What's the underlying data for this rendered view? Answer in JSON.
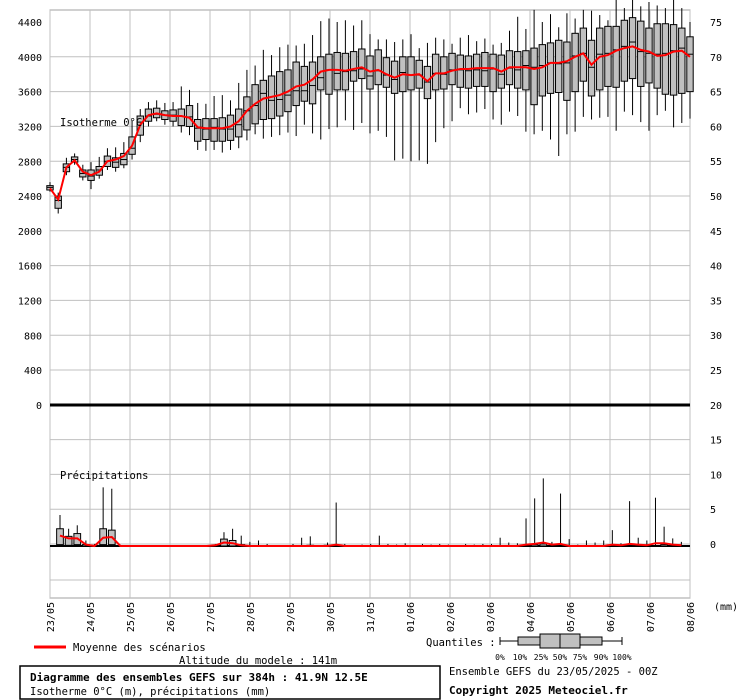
{
  "chart_data": {
    "type": "box",
    "title": "Diagramme des ensembles GEFS sur 384h : 41.9N 12.5E",
    "subtitle": "Isotherme 0°C (m), précipitations (mm)",
    "altitude_label": "Altitude du modele : 141m",
    "run_label": "Ensemble GEFS du 23/05/2025 - 00Z",
    "copyright": "Copyright 2025 Meteociel.fr",
    "legend_mean": "Moyenne des scénarios",
    "quantiles_label": "Quantiles :",
    "quantile_ticks": [
      "0%",
      "10%",
      "25%",
      "50%",
      "75%",
      "90%",
      "100%"
    ],
    "panel_iso_label": "Isotherme 0°C",
    "panel_precip_label": "Précipitations",
    "x_labels": [
      "23/05",
      "24/05",
      "25/05",
      "26/05",
      "27/05",
      "28/05",
      "29/05",
      "30/05",
      "31/05",
      "01/06",
      "02/06",
      "03/06",
      "04/06",
      "05/06",
      "06/06",
      "07/06",
      "08/06"
    ],
    "x_unit": "(mm)",
    "y_left_ticks": [
      "4400",
      "4000",
      "3600",
      "3200",
      "2800",
      "2400",
      "2000",
      "1600",
      "1200",
      "800",
      "400",
      "0"
    ],
    "y_right_ticks": [
      "75",
      "70",
      "65",
      "60",
      "55",
      "50",
      "45",
      "40",
      "35",
      "30",
      "25",
      "20",
      "15",
      "10",
      "5",
      "0"
    ],
    "isotherm": [
      [
        2450,
        2470,
        2500,
        2520,
        2560
      ],
      [
        2200,
        2260,
        2350,
        2400,
        2440
      ],
      [
        2640,
        2680,
        2730,
        2770,
        2840
      ],
      [
        2760,
        2790,
        2820,
        2850,
        2890
      ],
      [
        2580,
        2620,
        2660,
        2700,
        2760
      ],
      [
        2480,
        2580,
        2630,
        2700,
        2790
      ],
      [
        2600,
        2640,
        2700,
        2740,
        2850
      ],
      [
        2700,
        2740,
        2800,
        2860,
        2950
      ],
      [
        2680,
        2730,
        2790,
        2840,
        2960
      ],
      [
        2720,
        2760,
        2820,
        2890,
        3020
      ],
      [
        2820,
        2880,
        2950,
        3080,
        3270
      ],
      [
        3020,
        3100,
        3250,
        3320,
        3400
      ],
      [
        3200,
        3260,
        3320,
        3400,
        3480
      ],
      [
        3260,
        3300,
        3340,
        3410,
        3500
      ],
      [
        3220,
        3280,
        3330,
        3380,
        3470
      ],
      [
        3200,
        3260,
        3330,
        3390,
        3480
      ],
      [
        3130,
        3210,
        3320,
        3400,
        3660
      ],
      [
        3100,
        3200,
        3310,
        3440,
        3620
      ],
      [
        2930,
        3030,
        3180,
        3280,
        3470
      ],
      [
        2920,
        3050,
        3170,
        3290,
        3460
      ],
      [
        2930,
        3030,
        3190,
        3290,
        3550
      ],
      [
        2900,
        3030,
        3170,
        3300,
        3560
      ],
      [
        2930,
        3040,
        3170,
        3330,
        3500
      ],
      [
        2950,
        3080,
        3220,
        3400,
        3700
      ],
      [
        3040,
        3160,
        3380,
        3540,
        3850
      ],
      [
        3110,
        3230,
        3440,
        3680,
        3900
      ],
      [
        3060,
        3280,
        3580,
        3730,
        4080
      ],
      [
        3080,
        3290,
        3500,
        3780,
        4020
      ],
      [
        3100,
        3320,
        3510,
        3830,
        4110
      ],
      [
        3130,
        3370,
        3560,
        3850,
        4140
      ],
      [
        3090,
        3440,
        3610,
        3940,
        4130
      ],
      [
        3220,
        3490,
        3610,
        3890,
        4150
      ],
      [
        3120,
        3460,
        3670,
        3940,
        4250
      ],
      [
        3050,
        3620,
        3760,
        4000,
        4410
      ],
      [
        3170,
        3570,
        3850,
        4030,
        4440
      ],
      [
        3190,
        3620,
        3810,
        4050,
        4400
      ],
      [
        3270,
        3620,
        3830,
        4040,
        4420
      ],
      [
        3160,
        3720,
        3840,
        4060,
        4360
      ],
      [
        3240,
        3750,
        3860,
        4090,
        4420
      ],
      [
        3120,
        3630,
        3780,
        4010,
        4260
      ],
      [
        3150,
        3680,
        3840,
        4080,
        4200
      ],
      [
        3080,
        3650,
        3790,
        3990,
        4200
      ],
      [
        2810,
        3580,
        3740,
        3950,
        4170
      ],
      [
        2830,
        3600,
        3820,
        4000,
        4200
      ],
      [
        2800,
        3620,
        3790,
        4000,
        4260
      ],
      [
        2810,
        3640,
        3790,
        3960,
        4100
      ],
      [
        2770,
        3520,
        3710,
        3890,
        4160
      ],
      [
        3020,
        3620,
        3810,
        4030,
        4220
      ],
      [
        3180,
        3630,
        3800,
        4000,
        4200
      ],
      [
        3260,
        3680,
        3850,
        4040,
        4150
      ],
      [
        3410,
        3650,
        3850,
        4020,
        4220
      ],
      [
        3340,
        3640,
        3840,
        4010,
        4250
      ],
      [
        3360,
        3660,
        3850,
        4030,
        4180
      ],
      [
        3400,
        3660,
        3840,
        4050,
        4210
      ],
      [
        3280,
        3600,
        3860,
        4030,
        4140
      ],
      [
        3220,
        3640,
        3800,
        4020,
        4160
      ],
      [
        3370,
        3680,
        3870,
        4070,
        4300
      ],
      [
        3320,
        3640,
        3850,
        4060,
        4460
      ],
      [
        3140,
        3620,
        3900,
        4070,
        4320
      ],
      [
        3110,
        3450,
        3880,
        4100,
        4540
      ],
      [
        3150,
        3550,
        3900,
        4140,
        4400
      ],
      [
        3050,
        3580,
        3930,
        4160,
        4490
      ],
      [
        2860,
        3590,
        3920,
        4190,
        4340
      ],
      [
        3110,
        3500,
        3930,
        4170,
        4500
      ],
      [
        3140,
        3600,
        4010,
        4270,
        4440
      ],
      [
        3310,
        3720,
        4040,
        4330,
        4540
      ],
      [
        3280,
        3550,
        3880,
        4190,
        4530
      ],
      [
        3300,
        3620,
        4030,
        4330,
        4480
      ],
      [
        3310,
        3660,
        4040,
        4350,
        4420
      ],
      [
        3150,
        3650,
        4080,
        4350,
        4680
      ],
      [
        3370,
        3720,
        4120,
        4420,
        4560
      ],
      [
        3330,
        3750,
        4170,
        4450,
        4660
      ],
      [
        3250,
        3660,
        4060,
        4410,
        4580
      ],
      [
        3150,
        3700,
        4040,
        4330,
        4630
      ],
      [
        3330,
        3640,
        4030,
        4380,
        4590
      ],
      [
        3380,
        3570,
        4040,
        4380,
        4560
      ],
      [
        3190,
        3560,
        4070,
        4370,
        4720
      ],
      [
        3240,
        3580,
        4100,
        4330,
        4560
      ],
      [
        3290,
        3600,
        4030,
        4230,
        4400
      ]
    ],
    "isotherm_mean": [
      2490,
      2360,
      2730,
      2810,
      2680,
      2640,
      2680,
      2800,
      2820,
      2860,
      2980,
      3220,
      3330,
      3350,
      3330,
      3320,
      3320,
      3300,
      3190,
      3180,
      3180,
      3180,
      3200,
      3260,
      3380,
      3460,
      3520,
      3540,
      3560,
      3600,
      3660,
      3680,
      3740,
      3830,
      3850,
      3850,
      3840,
      3860,
      3880,
      3830,
      3850,
      3800,
      3760,
      3800,
      3790,
      3800,
      3720,
      3810,
      3810,
      3840,
      3860,
      3860,
      3870,
      3870,
      3870,
      3830,
      3880,
      3880,
      3880,
      3860,
      3880,
      3930,
      3930,
      3950,
      4000,
      4040,
      3910,
      4000,
      4020,
      4070,
      4100,
      4120,
      4080,
      4060,
      4010,
      4020,
      4060,
      4070,
      4000
    ],
    "precip": [
      [
        0,
        0.2,
        1,
        2.5,
        4.5
      ],
      [
        0,
        0.1,
        0.6,
        1.4,
        2.5
      ],
      [
        0,
        0.2,
        0.8,
        1.8,
        3
      ],
      [
        0,
        0,
        0.1,
        0.2,
        0.8
      ],
      [
        0,
        0,
        0,
        0.1,
        0.3
      ],
      [
        0,
        0.2,
        0.8,
        2.5,
        8.5
      ],
      [
        0,
        0.2,
        1,
        2.3,
        8.3
      ],
      [
        0,
        0,
        0,
        0,
        0
      ],
      [
        0,
        0,
        0,
        0,
        0
      ],
      [
        0,
        0,
        0,
        0,
        0
      ],
      [
        0,
        0,
        0,
        0,
        0
      ],
      [
        0,
        0,
        0,
        0,
        0
      ],
      [
        0,
        0,
        0,
        0,
        0
      ],
      [
        0,
        0,
        0,
        0,
        0
      ],
      [
        0,
        0,
        0,
        0,
        0
      ],
      [
        0,
        0,
        0,
        0,
        0.1
      ],
      [
        0,
        0,
        0,
        0,
        0
      ],
      [
        0,
        0,
        0,
        0,
        0
      ],
      [
        0,
        0,
        0,
        0,
        0.3
      ],
      [
        0,
        0,
        0.2,
        1,
        2
      ],
      [
        0,
        0,
        0.1,
        0.8,
        2.5
      ],
      [
        0,
        0,
        0,
        0.2,
        1.5
      ],
      [
        0,
        0,
        0,
        0,
        0.6
      ],
      [
        0,
        0,
        0,
        0,
        0.8
      ],
      [
        0,
        0,
        0,
        0,
        0.3
      ],
      [
        0,
        0,
        0,
        0,
        0
      ],
      [
        0,
        0,
        0,
        0,
        0
      ],
      [
        0,
        0,
        0,
        0,
        0.3
      ],
      [
        0,
        0,
        0,
        0,
        1.2
      ],
      [
        0,
        0,
        0,
        0.1,
        1.4
      ],
      [
        0,
        0,
        0,
        0,
        0
      ],
      [
        0,
        0,
        0,
        0.1,
        0.5
      ],
      [
        0,
        0,
        0,
        0.1,
        6.3
      ],
      [
        0,
        0,
        0,
        0,
        0.3
      ],
      [
        0,
        0,
        0,
        0,
        0
      ],
      [
        0,
        0,
        0,
        0,
        0.2
      ],
      [
        0,
        0,
        0,
        0,
        0.3
      ],
      [
        0,
        0,
        0,
        0,
        1.5
      ],
      [
        0,
        0,
        0,
        0,
        0.3
      ],
      [
        0,
        0,
        0,
        0,
        0.2
      ],
      [
        0,
        0,
        0,
        0,
        0.4
      ],
      [
        0,
        0,
        0,
        0,
        0
      ],
      [
        0,
        0,
        0,
        0,
        0.3
      ],
      [
        0,
        0,
        0,
        0,
        0.2
      ],
      [
        0,
        0,
        0,
        0,
        0.3
      ],
      [
        0,
        0,
        0,
        0,
        0.2
      ],
      [
        0,
        0,
        0,
        0,
        0
      ],
      [
        0,
        0,
        0,
        0,
        0.3
      ],
      [
        0,
        0,
        0,
        0,
        0.2
      ],
      [
        0,
        0,
        0,
        0,
        0.3
      ],
      [
        0,
        0,
        0,
        0,
        0.3
      ],
      [
        0,
        0,
        0,
        0,
        1.2
      ],
      [
        0,
        0,
        0,
        0,
        0.5
      ],
      [
        0,
        0,
        0,
        0,
        0.4
      ],
      [
        0,
        0,
        0,
        0.1,
        4
      ],
      [
        0,
        0,
        0,
        0.2,
        6.9
      ],
      [
        0,
        0,
        0,
        0.3,
        9.8
      ],
      [
        0,
        0,
        0,
        0,
        0.6
      ],
      [
        0,
        0,
        0,
        0.1,
        7.6
      ],
      [
        0,
        0,
        0,
        0,
        1
      ],
      [
        0,
        0,
        0,
        0,
        0.2
      ],
      [
        0,
        0,
        0,
        0,
        0.8
      ],
      [
        0,
        0,
        0,
        0,
        0.5
      ],
      [
        0,
        0,
        0,
        0,
        0.8
      ],
      [
        0,
        0,
        0,
        0.1,
        2.3
      ],
      [
        0,
        0,
        0,
        0,
        0.4
      ],
      [
        0,
        0,
        0,
        0,
        6.5
      ],
      [
        0,
        0,
        0,
        0,
        1.2
      ],
      [
        0,
        0,
        0,
        0,
        0.8
      ],
      [
        0,
        0,
        0,
        0,
        7
      ],
      [
        0,
        0,
        0,
        0.2,
        2.8
      ],
      [
        0,
        0,
        0,
        0,
        1.1
      ],
      [
        0,
        0,
        0,
        0,
        0.6
      ]
    ],
    "precip_mean": [
      1.5,
      1.1,
      1.1,
      0.2,
      0,
      1.2,
      1.3,
      0,
      0,
      0,
      0,
      0,
      0,
      0,
      0,
      0,
      0,
      0,
      0.1,
      0.5,
      0.4,
      0.1,
      0,
      0,
      0,
      0,
      0,
      0,
      0,
      0,
      0,
      0,
      0.2,
      0,
      0,
      0,
      0,
      0,
      0,
      0,
      0,
      0,
      0,
      0,
      0,
      0,
      0,
      0,
      0,
      0,
      0,
      0,
      0,
      0,
      0.2,
      0.3,
      0.5,
      0.2,
      0.3,
      0,
      0,
      0,
      0,
      0,
      0.2,
      0.1,
      0.3,
      0.2,
      0.1,
      0.4,
      0.4,
      0.2,
      0.1
    ],
    "colors": {
      "box_fill": "#c0c0c0",
      "mean_line": "#ff0000",
      "grid": "#c0c0c0"
    }
  }
}
